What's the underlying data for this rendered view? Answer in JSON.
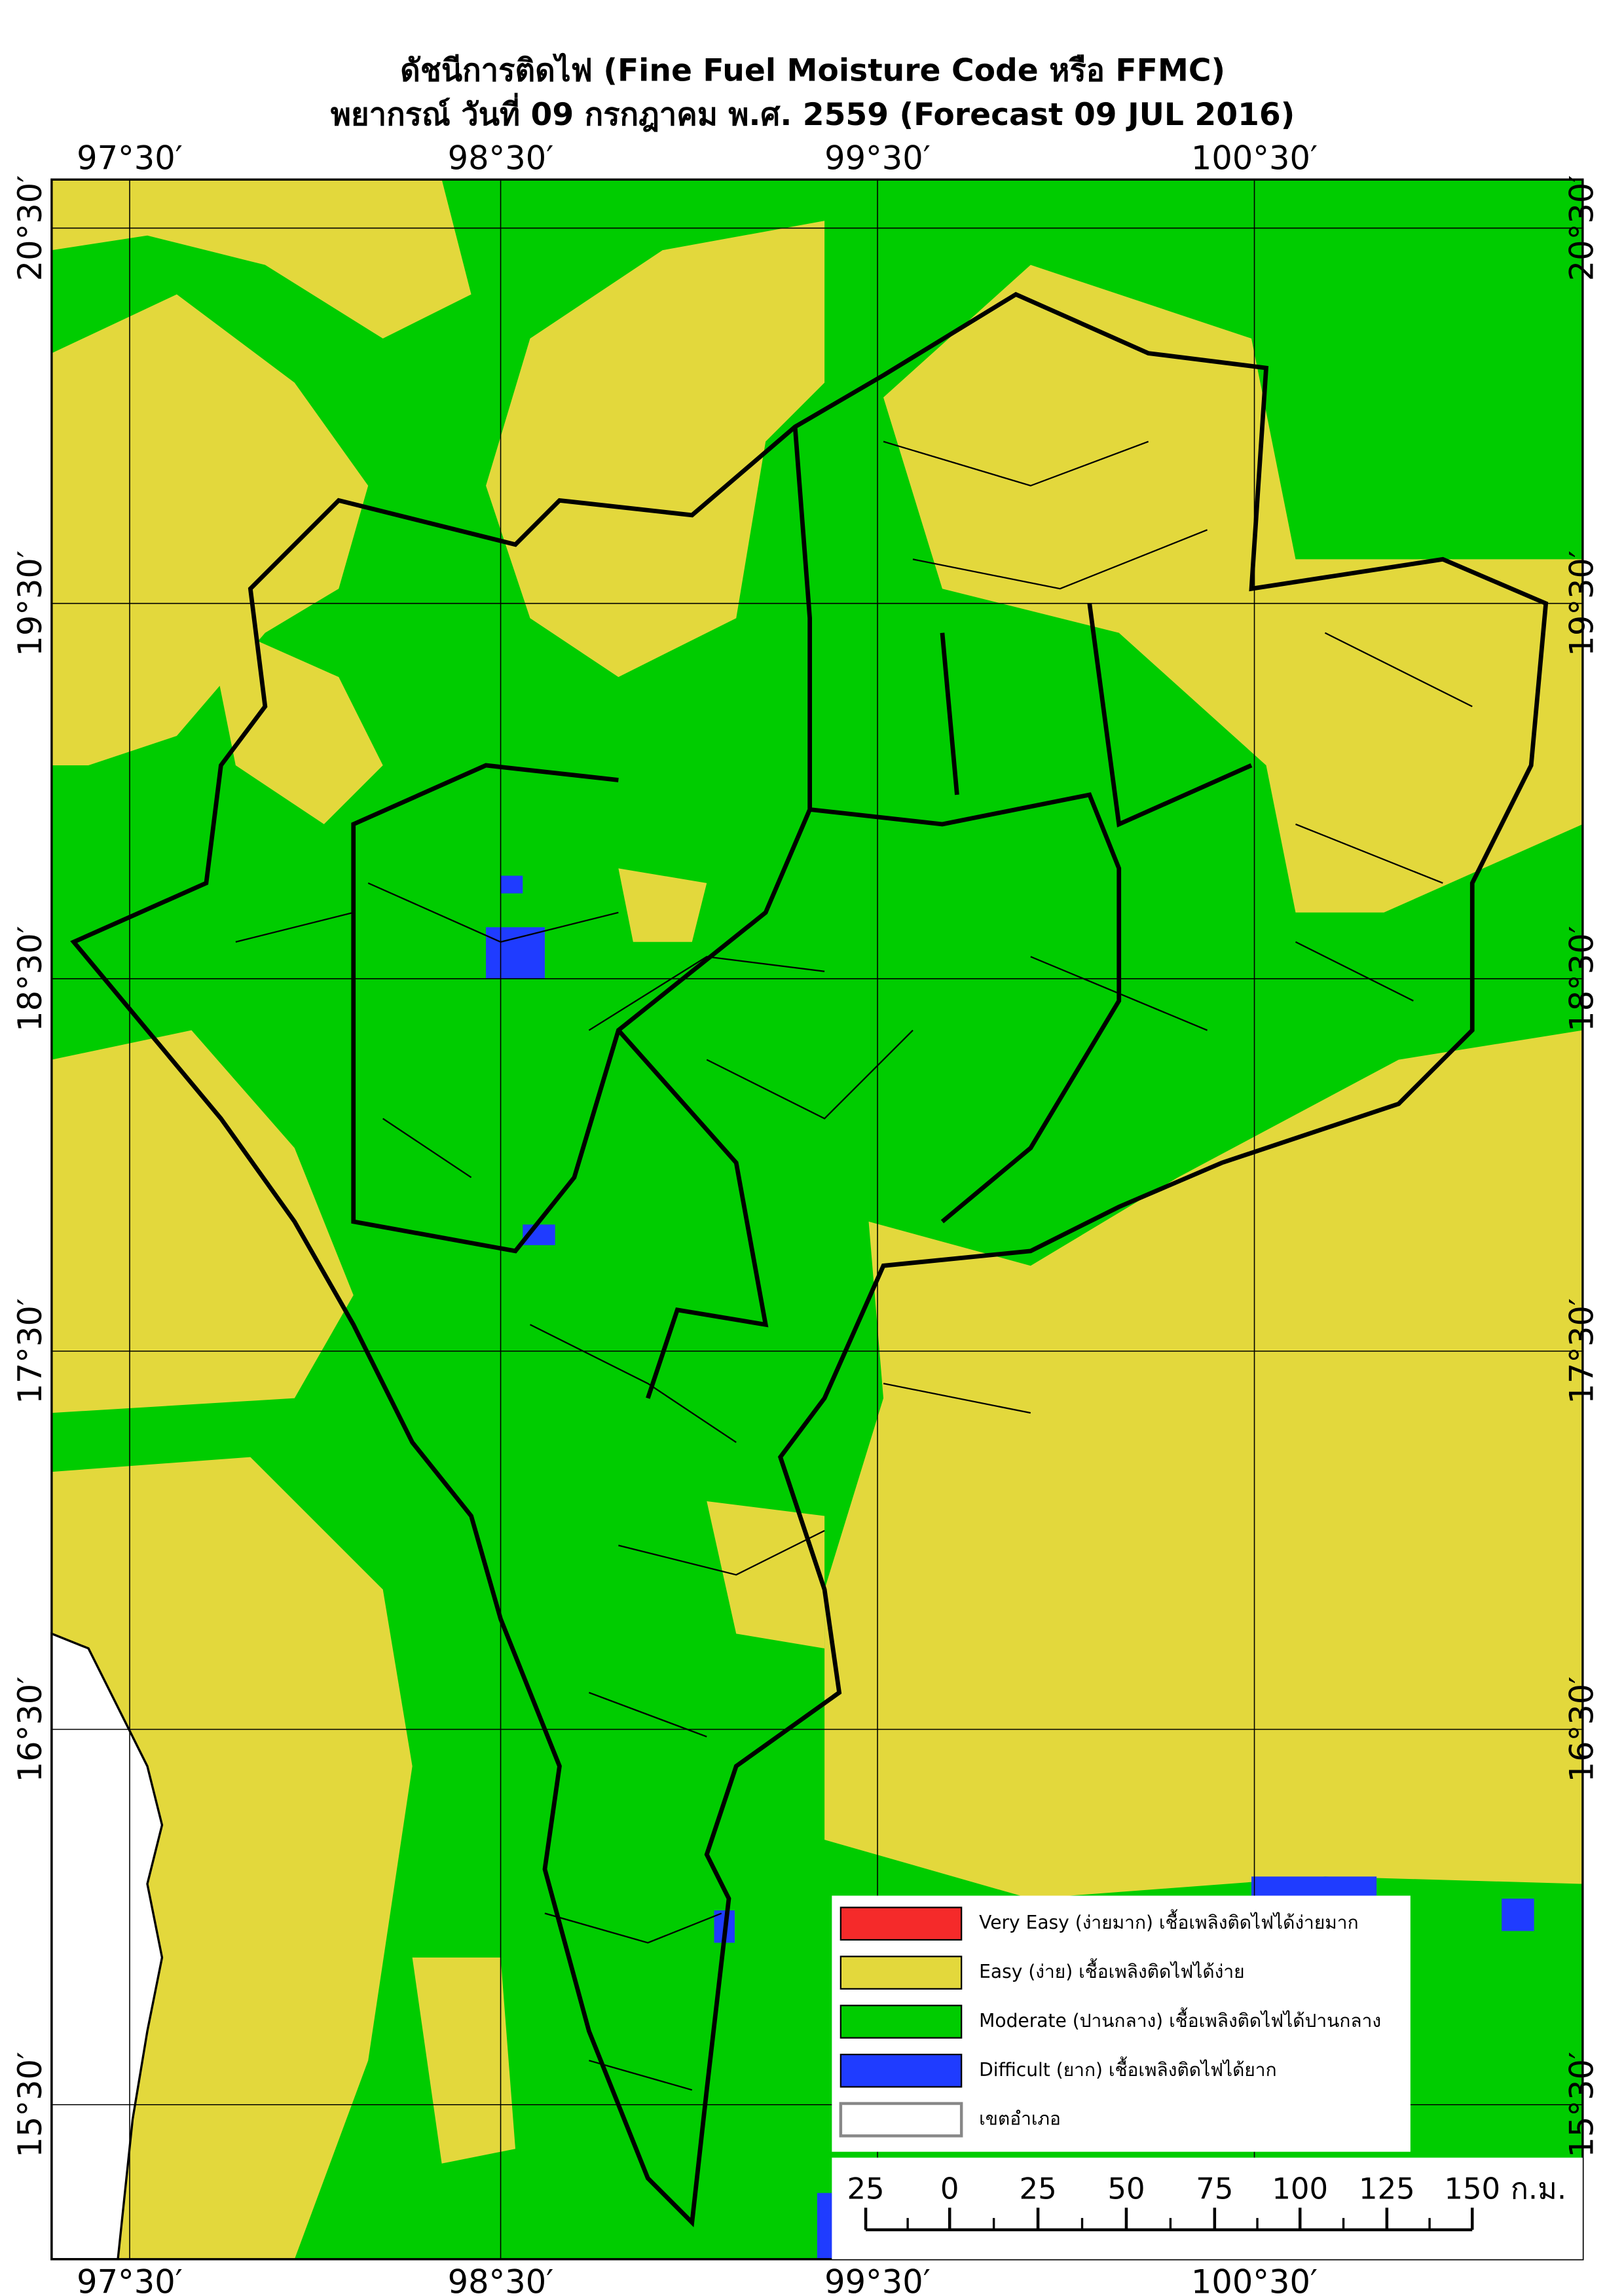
{
  "title": "ดัชนีการติดไฟ (Fine Fuel Moisture Code หรือ FFMC)",
  "subtitle": "พยากรณ์ วันที่ 09 กรกฎาคม พ.ศ. 2559 (Forecast 09 JUL 2016)",
  "longitude_labels": [
    "97°30′",
    "98°30′",
    "99°30′",
    "100°30′"
  ],
  "latitude_labels": [
    "20°30′",
    "19°30′",
    "18°30′",
    "17°30′",
    "16°30′",
    "15°30′"
  ],
  "legend": [
    {
      "label": "Very Easy (ง่ายมาก) เชื้อเพลิงติดไฟได้ง่ายมาก",
      "color": "#f52a2a"
    },
    {
      "label": "Easy (ง่าย) เชื้อเพลิงติดไฟได้ง่าย",
      "color": "#e3d83c"
    },
    {
      "label": "Moderate (ปานกลาง) เชื้อเพลิงติดไฟได้ปานกลาง",
      "color": "#00cc00"
    },
    {
      "label": "Difficult (ยาก) เชื้อเพลิงติดไฟได้ยาก",
      "color": "#1f3cff"
    },
    {
      "label": "เขตอำเภอ",
      "color": "#ffffff"
    }
  ],
  "scale_bar": {
    "labels": [
      25,
      0,
      25,
      50,
      75,
      100,
      125,
      150
    ],
    "unit": "ก.ม."
  }
}
